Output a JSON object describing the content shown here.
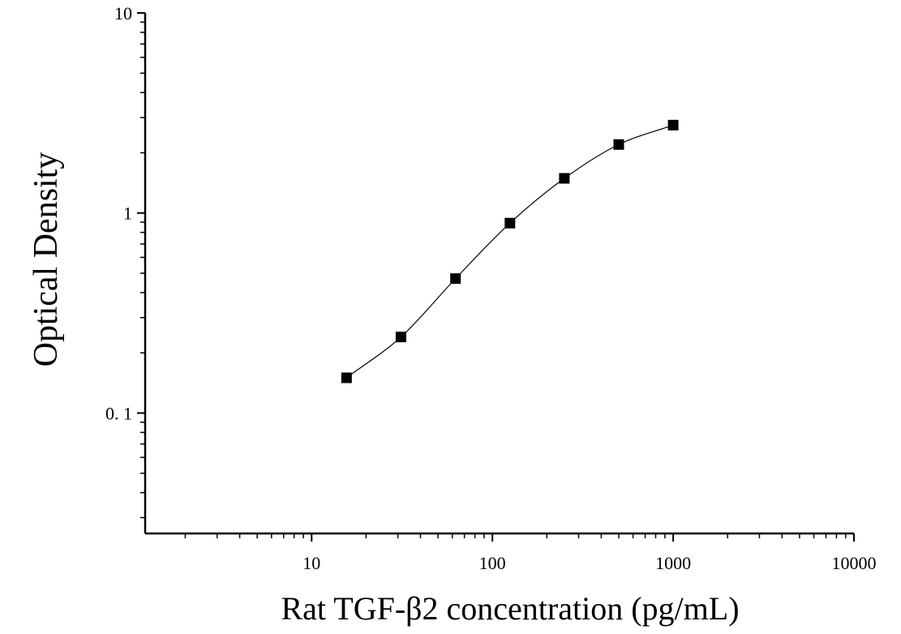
{
  "chart_data": {
    "type": "scatter",
    "xlabel": "Rat TGF-β2 concentration (pg/mL)",
    "ylabel": "Optical Density",
    "xscale": "log",
    "yscale": "log",
    "xlim": [
      1.2,
      10000
    ],
    "ylim": [
      0.025,
      10
    ],
    "xticks": [
      {
        "value": 10,
        "label": "10"
      },
      {
        "value": 100,
        "label": "100"
      },
      {
        "value": 1000,
        "label": "1000"
      },
      {
        "value": 10000,
        "label": "10000"
      }
    ],
    "yticks": [
      {
        "value": 0.1,
        "label": "0. 1"
      },
      {
        "value": 1,
        "label": "1"
      },
      {
        "value": 10,
        "label": "10"
      }
    ],
    "grid": false,
    "legend": "none",
    "marker": "square",
    "series": [
      {
        "x": [
          15.6,
          31.2,
          62.5,
          125,
          250,
          500,
          1000
        ],
        "y": [
          0.15,
          0.24,
          0.47,
          0.89,
          1.49,
          2.2,
          2.75
        ]
      }
    ],
    "fit_curve": true,
    "colors": {
      "points": "#000000",
      "axes": "#000000",
      "curve": "#000000"
    }
  }
}
